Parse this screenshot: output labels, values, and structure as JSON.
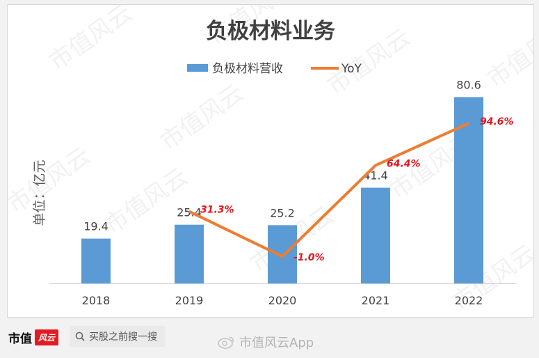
{
  "chart_data": {
    "type": "bar+line",
    "title": "负极材料业务",
    "ylabel": "单位：亿元",
    "categories": [
      "2018",
      "2019",
      "2020",
      "2021",
      "2022"
    ],
    "series": [
      {
        "name": "负极材料营收",
        "type": "bar",
        "values": [
          19.4,
          25.4,
          25.2,
          41.4,
          80.6
        ],
        "labels": [
          "19.4",
          "25.4",
          "25.2",
          "41.4",
          "80.6"
        ]
      },
      {
        "name": "YoY",
        "type": "line",
        "values": [
          null,
          31.3,
          -1.0,
          64.4,
          94.6
        ],
        "labels": [
          "",
          "31.3%",
          "-1.0%",
          "64.4%",
          "94.6%"
        ]
      }
    ],
    "ylim": [
      0,
      90
    ],
    "legend_position": "top",
    "grid": false,
    "colors": {
      "bar": "#5b9bd5",
      "line": "#ed7d31",
      "pct_label": "#e8141b"
    }
  },
  "watermark": "市值风云",
  "footer": {
    "brand": "市值",
    "brand_logo": "风云",
    "search_placeholder": "买股之前搜一搜",
    "weibo_text": "市值风云App"
  }
}
